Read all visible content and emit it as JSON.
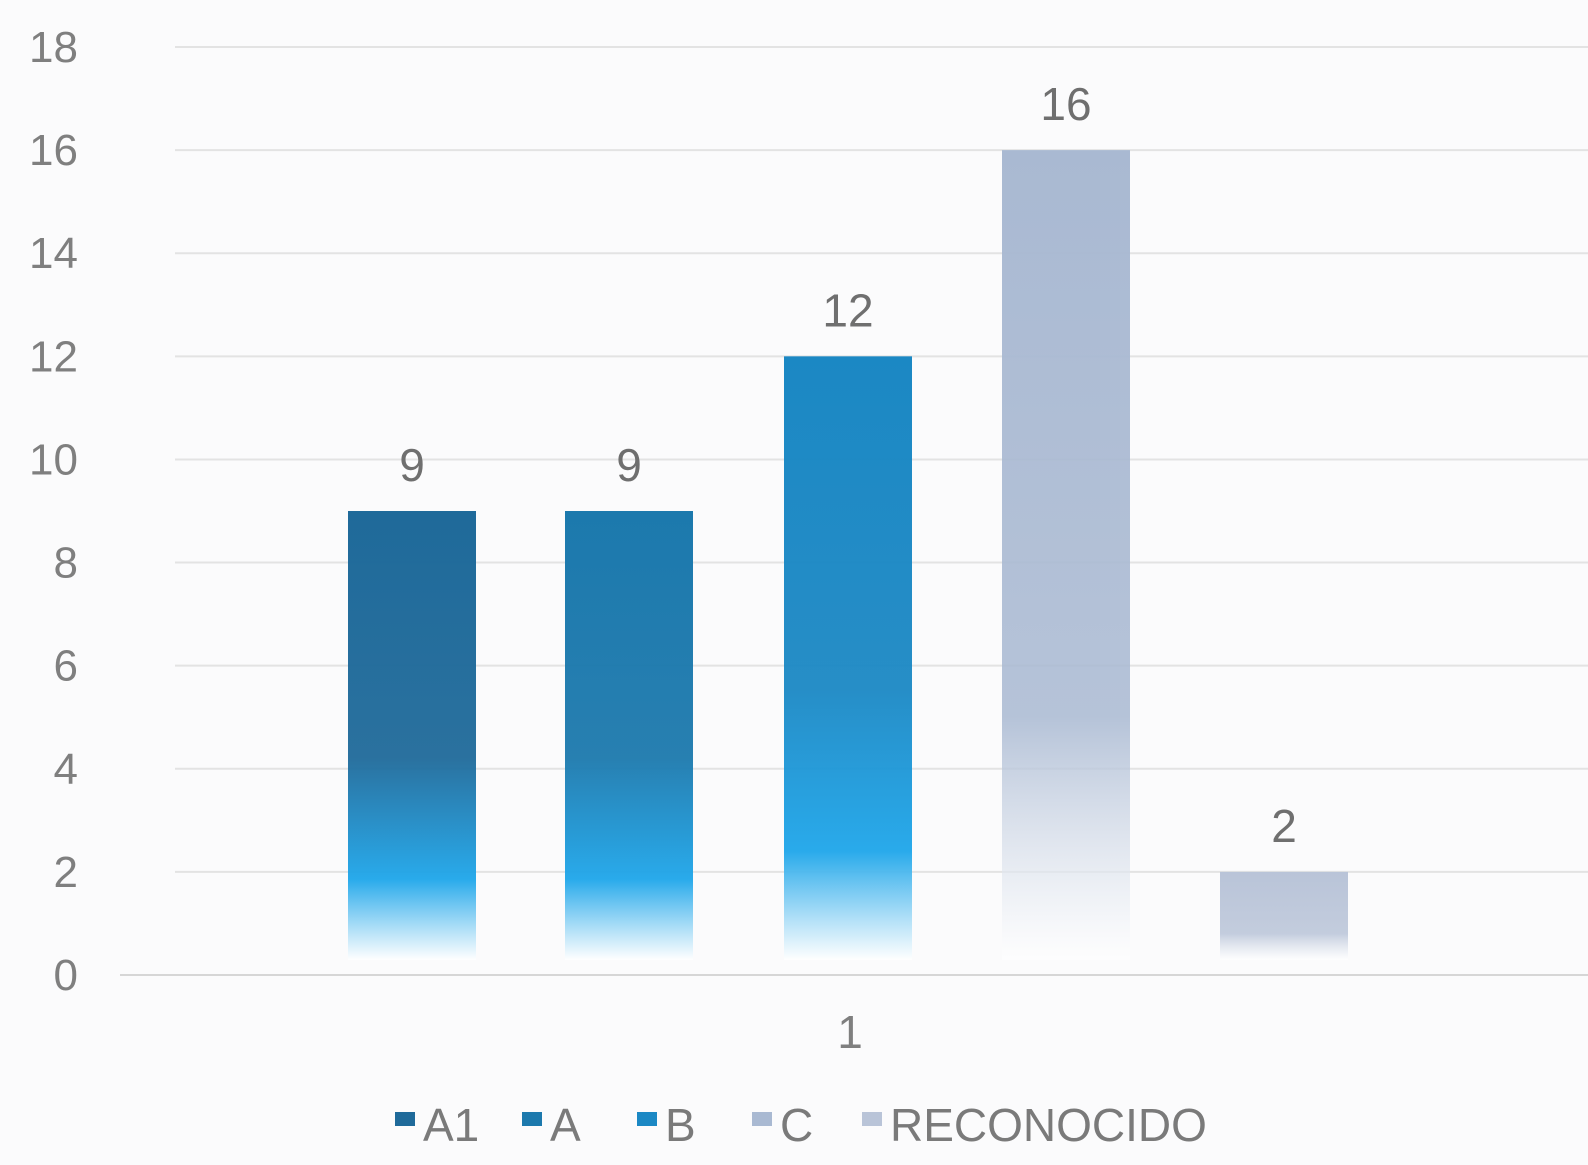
{
  "chart_data": {
    "type": "bar",
    "categories": [
      "1"
    ],
    "series": [
      {
        "name": "A1",
        "values": [
          9
        ],
        "color": "#1f6a9a"
      },
      {
        "name": "A",
        "values": [
          9
        ],
        "color": "#1c79ad"
      },
      {
        "name": "B",
        "values": [
          12
        ],
        "color": "#1b88c4"
      },
      {
        "name": "C",
        "values": [
          16
        ],
        "color": "#a9b9d2"
      },
      {
        "name": "RECONOCIDO",
        "values": [
          2
        ],
        "color": "#b9c4d8"
      }
    ],
    "ylim": [
      0,
      18
    ],
    "yticks": [
      0,
      2,
      4,
      6,
      8,
      10,
      12,
      14,
      16,
      18
    ],
    "data_labels": [
      "9",
      "9",
      "12",
      "16",
      "2"
    ],
    "grid": true,
    "legend": "bottom",
    "title": "",
    "xlabel": "",
    "ylabel": ""
  }
}
